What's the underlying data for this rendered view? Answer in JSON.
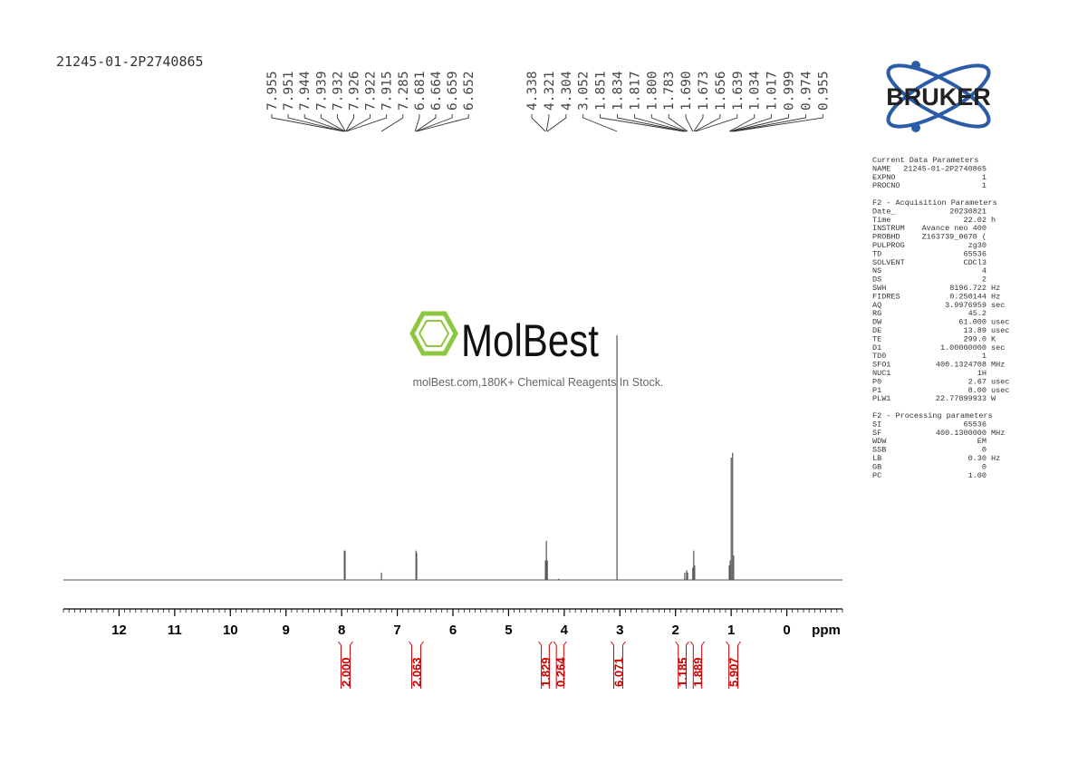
{
  "sample_id": "21245-01-2P2740865",
  "chart_data": {
    "type": "nmr",
    "x_label": "ppm",
    "xlim": [
      13.0,
      -1.0
    ],
    "xticks": [
      12,
      11,
      10,
      9,
      8,
      7,
      6,
      5,
      4,
      3,
      2,
      1,
      0
    ],
    "ylim": [
      0,
      100
    ],
    "color": "#555555",
    "peaks": {
      "x": [
        7.951,
        7.939,
        7.285,
        6.664,
        6.652,
        4.338,
        4.321,
        4.304,
        4.1,
        3.052,
        1.834,
        1.8,
        1.783,
        1.69,
        1.673,
        1.656,
        1.034,
        1.017,
        0.999,
        0.974,
        0.955
      ],
      "y": [
        12,
        12,
        3,
        12,
        11,
        8,
        16,
        8,
        0.5,
        100,
        3,
        4,
        3,
        5,
        12,
        6,
        6,
        8,
        50,
        52,
        10
      ]
    },
    "peak_labels": {
      "values": [
        7.955,
        7.951,
        7.944,
        7.939,
        7.932,
        7.926,
        7.922,
        7.915,
        7.285,
        6.681,
        6.664,
        6.659,
        6.652,
        4.338,
        4.321,
        4.304,
        3.052,
        1.851,
        1.834,
        1.817,
        1.8,
        1.783,
        1.69,
        1.673,
        1.656,
        1.639,
        1.034,
        1.017,
        0.999,
        0.974,
        0.955
      ],
      "value_labels": [
        "7.955",
        "7.951",
        "7.944",
        "7.939",
        "7.932",
        "7.926",
        "7.922",
        "7.915",
        "7.285",
        "6.681",
        "6.664",
        "6.659",
        "6.652",
        "4.338",
        "4.321",
        "4.304",
        "3.052",
        "1.851",
        "1.834",
        "1.817",
        "1.800",
        "1.783",
        "1.690",
        "1.673",
        "1.656",
        "1.639",
        "1.034",
        "1.017",
        "0.999",
        "0.974",
        "0.955"
      ]
    },
    "integrals": {
      "values": [
        2,
        2.063,
        1.829,
        0.264,
        6.071,
        1.185,
        1.889,
        5.907
      ],
      "value_labels": [
        "2.000",
        "2.063",
        "1.829",
        "0.264",
        "6.071",
        "1.185",
        "1.889",
        "5.907"
      ],
      "ranges": [
        [
          8.06,
          7.8
        ],
        [
          6.79,
          6.53
        ],
        [
          4.46,
          4.22
        ],
        [
          4.19,
          3.96
        ],
        [
          3.16,
          2.9
        ],
        [
          2.0,
          1.76
        ],
        [
          1.73,
          1.48
        ],
        [
          1.09,
          0.83
        ]
      ],
      "color": "#cc0000"
    }
  },
  "logo": {
    "text": "BRUKER"
  },
  "watermark": {
    "title": "MolBest",
    "subtitle": "molBest.com,180K+ Chemical Reagents In Stock."
  },
  "parameters": [
    {
      "heading": "Current Data Parameters",
      "rows": [
        [
          "NAME",
          "21245-01-2P2740865"
        ],
        [
          "EXPNO",
          "1"
        ],
        [
          "PROCNO",
          "1"
        ]
      ]
    },
    {
      "heading": "F2 - Acquisition Parameters",
      "rows": [
        [
          "Date_",
          "20230821"
        ],
        [
          "Time",
          "22.02",
          "h"
        ],
        [
          "INSTRUM",
          "Avance neo 400"
        ],
        [
          "PROBHD",
          "Z163739_0670 ("
        ],
        [
          "PULPROG",
          "zg30"
        ],
        [
          "TD",
          "65536"
        ],
        [
          "SOLVENT",
          "CDCl3"
        ],
        [
          "NS",
          "4"
        ],
        [
          "DS",
          "2"
        ],
        [
          "SWH",
          "8196.722",
          "Hz"
        ],
        [
          "FIDRES",
          "0.250144",
          "Hz"
        ],
        [
          "AQ",
          "3.9976959",
          "sec"
        ],
        [
          "RG",
          "45.2"
        ],
        [
          "DW",
          "61.000",
          "usec"
        ],
        [
          "DE",
          "13.89",
          "usec"
        ],
        [
          "TE",
          "299.0",
          "K"
        ],
        [
          "D1",
          "1.00000000",
          "sec"
        ],
        [
          "TD0",
          "1"
        ],
        [
          "SFO1",
          "400.1324708",
          "MHz"
        ],
        [
          "NUC1",
          "1H"
        ],
        [
          "P0",
          "2.67",
          "usec"
        ],
        [
          "P1",
          "8.00",
          "usec"
        ],
        [
          "PLW1",
          "22.77899933",
          "W"
        ]
      ]
    },
    {
      "heading": "F2 - Processing parameters",
      "rows": [
        [
          "SI",
          "65536"
        ],
        [
          "SF",
          "400.1300000",
          "MHz"
        ],
        [
          "WDW",
          "EM"
        ],
        [
          "SSB",
          "0"
        ],
        [
          "LB",
          "0.30",
          "Hz"
        ],
        [
          "GB",
          "0"
        ],
        [
          "PC",
          "1.00"
        ]
      ]
    }
  ]
}
